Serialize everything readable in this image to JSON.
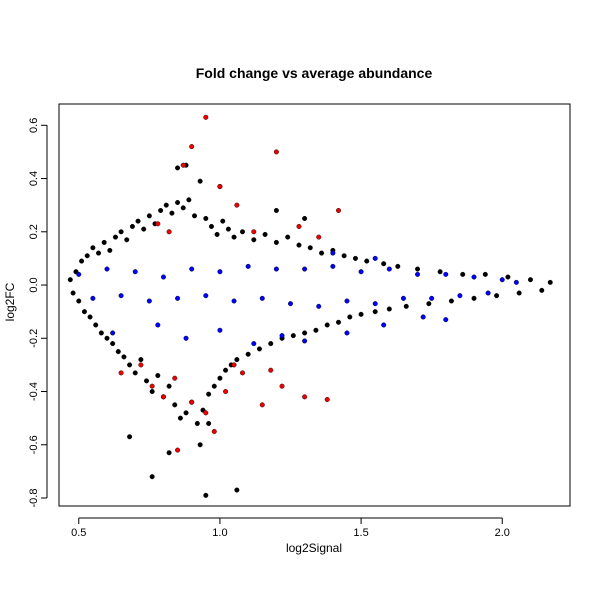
{
  "chart_data": {
    "type": "scatter",
    "title": "Fold change vs average abundance",
    "xlabel": "log2Signal",
    "ylabel": "log2FC",
    "xlim": [
      0.43,
      2.24
    ],
    "ylim": [
      -0.83,
      0.68
    ],
    "xticks": [
      {
        "value": 0.5,
        "label": "0.5"
      },
      {
        "value": 1.0,
        "label": "1.0"
      },
      {
        "value": 1.5,
        "label": "1.5"
      },
      {
        "value": 2.0,
        "label": "2.0"
      }
    ],
    "yticks": [
      {
        "value": -0.8,
        "label": "-0.8"
      },
      {
        "value": -0.6,
        "label": "-0.6"
      },
      {
        "value": -0.4,
        "label": "-0.4"
      },
      {
        "value": -0.2,
        "label": "-0.2"
      },
      {
        "value": 0.0,
        "label": "0.0"
      },
      {
        "value": 0.2,
        "label": "0.2"
      },
      {
        "value": 0.4,
        "label": "0.4"
      },
      {
        "value": 0.6,
        "label": "0.6"
      }
    ],
    "grid": false,
    "legend": "none",
    "colors": {
      "black": "#000000",
      "blue": "#0000ff",
      "red": "#ee0000"
    },
    "series": [
      {
        "color": "black",
        "points": [
          [
            0.47,
            0.02
          ],
          [
            0.48,
            -0.03
          ],
          [
            0.49,
            0.05
          ],
          [
            0.5,
            -0.06
          ],
          [
            0.51,
            0.09
          ],
          [
            0.52,
            -0.1
          ],
          [
            0.53,
            0.11
          ],
          [
            0.54,
            -0.12
          ],
          [
            0.55,
            0.14
          ],
          [
            0.56,
            -0.15
          ],
          [
            0.57,
            0.12
          ],
          [
            0.58,
            -0.18
          ],
          [
            0.59,
            0.16
          ],
          [
            0.6,
            -0.2
          ],
          [
            0.61,
            0.13
          ],
          [
            0.62,
            -0.22
          ],
          [
            0.63,
            0.18
          ],
          [
            0.64,
            -0.25
          ],
          [
            0.65,
            0.2
          ],
          [
            0.66,
            -0.27
          ],
          [
            0.67,
            0.17
          ],
          [
            0.68,
            -0.3
          ],
          [
            0.69,
            0.22
          ],
          [
            0.7,
            -0.33
          ],
          [
            0.71,
            0.24
          ],
          [
            0.72,
            -0.28
          ],
          [
            0.73,
            0.21
          ],
          [
            0.74,
            -0.36
          ],
          [
            0.75,
            0.26
          ],
          [
            0.76,
            -0.4
          ],
          [
            0.77,
            0.23
          ],
          [
            0.78,
            -0.34
          ],
          [
            0.79,
            0.28
          ],
          [
            0.8,
            -0.42
          ],
          [
            0.81,
            0.3
          ],
          [
            0.82,
            -0.38
          ],
          [
            0.83,
            0.27
          ],
          [
            0.84,
            -0.45
          ],
          [
            0.85,
            0.31
          ],
          [
            0.86,
            -0.5
          ],
          [
            0.87,
            0.29
          ],
          [
            0.88,
            -0.48
          ],
          [
            0.89,
            0.32
          ],
          [
            0.9,
            -0.44
          ],
          [
            0.91,
            0.26
          ],
          [
            0.92,
            -0.52
          ],
          [
            0.93,
            0.39
          ],
          [
            0.94,
            -0.47
          ],
          [
            0.95,
            0.25
          ],
          [
            0.96,
            -0.41
          ],
          [
            0.97,
            0.22
          ],
          [
            0.98,
            -0.38
          ],
          [
            0.99,
            0.19
          ],
          [
            1.0,
            -0.35
          ],
          [
            1.01,
            0.24
          ],
          [
            1.02,
            -0.32
          ],
          [
            1.03,
            0.21
          ],
          [
            1.04,
            -0.3
          ],
          [
            1.05,
            0.18
          ],
          [
            1.06,
            -0.28
          ],
          [
            1.08,
            0.2
          ],
          [
            1.1,
            -0.26
          ],
          [
            1.12,
            0.17
          ],
          [
            1.14,
            -0.24
          ],
          [
            1.16,
            0.19
          ],
          [
            1.18,
            -0.22
          ],
          [
            1.2,
            0.16
          ],
          [
            1.22,
            -0.2
          ],
          [
            1.24,
            0.18
          ],
          [
            1.26,
            -0.19
          ],
          [
            1.28,
            0.15
          ],
          [
            1.3,
            -0.18
          ],
          [
            1.32,
            0.14
          ],
          [
            1.34,
            -0.17
          ],
          [
            1.36,
            0.12
          ],
          [
            1.38,
            -0.15
          ],
          [
            1.4,
            0.13
          ],
          [
            1.42,
            -0.14
          ],
          [
            1.44,
            0.11
          ],
          [
            1.46,
            -0.12
          ],
          [
            1.48,
            0.1
          ],
          [
            1.5,
            -0.11
          ],
          [
            1.52,
            0.09
          ],
          [
            1.55,
            -0.1
          ],
          [
            1.58,
            0.08
          ],
          [
            1.6,
            -0.09
          ],
          [
            1.63,
            0.07
          ],
          [
            1.66,
            -0.08
          ],
          [
            1.7,
            0.06
          ],
          [
            1.74,
            -0.07
          ],
          [
            1.78,
            0.05
          ],
          [
            1.82,
            -0.06
          ],
          [
            1.86,
            0.04
          ],
          [
            1.9,
            -0.05
          ],
          [
            1.94,
            0.04
          ],
          [
            1.98,
            -0.04
          ],
          [
            2.02,
            0.03
          ],
          [
            2.06,
            -0.03
          ],
          [
            2.1,
            0.02
          ],
          [
            2.14,
            -0.02
          ],
          [
            2.17,
            0.01
          ],
          [
            0.88,
            0.45
          ],
          [
            0.85,
            0.44
          ],
          [
            1.0,
            0.37
          ],
          [
            0.76,
            -0.72
          ],
          [
            0.95,
            -0.79
          ],
          [
            1.06,
            -0.77
          ],
          [
            0.82,
            -0.63
          ],
          [
            0.68,
            -0.57
          ],
          [
            0.93,
            -0.6
          ],
          [
            0.96,
            -0.52
          ],
          [
            1.2,
            0.28
          ],
          [
            1.3,
            0.25
          ]
        ]
      },
      {
        "color": "blue",
        "points": [
          [
            0.5,
            0.04
          ],
          [
            0.55,
            -0.05
          ],
          [
            0.6,
            0.06
          ],
          [
            0.65,
            -0.04
          ],
          [
            0.7,
            0.05
          ],
          [
            0.75,
            -0.06
          ],
          [
            0.8,
            0.03
          ],
          [
            0.85,
            -0.05
          ],
          [
            0.9,
            0.06
          ],
          [
            0.95,
            -0.04
          ],
          [
            1.0,
            0.05
          ],
          [
            1.05,
            -0.06
          ],
          [
            1.1,
            0.07
          ],
          [
            1.15,
            -0.05
          ],
          [
            1.2,
            0.06
          ],
          [
            1.25,
            -0.07
          ],
          [
            1.3,
            0.06
          ],
          [
            1.35,
            -0.08
          ],
          [
            1.4,
            0.07
          ],
          [
            1.45,
            -0.06
          ],
          [
            1.5,
            0.05
          ],
          [
            1.55,
            -0.07
          ],
          [
            1.6,
            0.06
          ],
          [
            1.65,
            -0.05
          ],
          [
            1.7,
            0.04
          ],
          [
            1.75,
            -0.05
          ],
          [
            1.8,
            0.04
          ],
          [
            1.85,
            -0.04
          ],
          [
            1.9,
            0.03
          ],
          [
            1.95,
            -0.03
          ],
          [
            2.0,
            0.02
          ],
          [
            2.05,
            0.01
          ],
          [
            0.62,
            -0.18
          ],
          [
            0.78,
            -0.15
          ],
          [
            0.88,
            -0.2
          ],
          [
            1.0,
            -0.17
          ],
          [
            1.12,
            -0.22
          ],
          [
            1.22,
            -0.19
          ],
          [
            1.3,
            -0.21
          ],
          [
            1.45,
            -0.18
          ],
          [
            1.58,
            -0.15
          ],
          [
            1.72,
            -0.12
          ],
          [
            1.4,
            0.12
          ],
          [
            1.55,
            0.1
          ],
          [
            1.8,
            -0.13
          ]
        ]
      },
      {
        "color": "red",
        "points": [
          [
            0.95,
            0.63
          ],
          [
            0.9,
            0.52
          ],
          [
            0.87,
            0.45
          ],
          [
            1.0,
            0.37
          ],
          [
            1.2,
            0.5
          ],
          [
            1.42,
            0.28
          ],
          [
            1.06,
            0.3
          ],
          [
            0.78,
            0.23
          ],
          [
            0.82,
            0.2
          ],
          [
            1.12,
            0.2
          ],
          [
            1.28,
            0.22
          ],
          [
            1.35,
            0.18
          ],
          [
            0.76,
            -0.38
          ],
          [
            0.84,
            -0.35
          ],
          [
            0.9,
            -0.44
          ],
          [
            0.95,
            -0.48
          ],
          [
            1.02,
            -0.4
          ],
          [
            1.08,
            -0.33
          ],
          [
            1.15,
            -0.45
          ],
          [
            1.22,
            -0.38
          ],
          [
            1.3,
            -0.42
          ],
          [
            1.38,
            -0.43
          ],
          [
            0.72,
            -0.3
          ],
          [
            0.85,
            -0.62
          ],
          [
            0.98,
            -0.55
          ],
          [
            1.05,
            -0.3
          ],
          [
            1.18,
            -0.32
          ],
          [
            0.65,
            -0.33
          ],
          [
            0.8,
            -0.42
          ]
        ]
      }
    ]
  }
}
